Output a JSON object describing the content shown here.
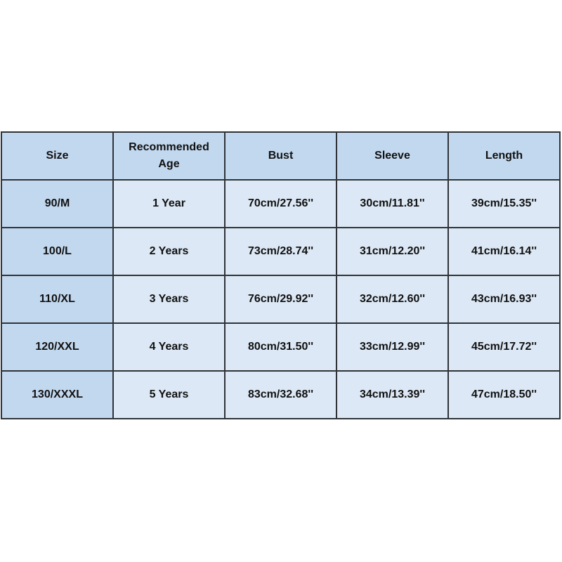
{
  "table": {
    "headers": [
      "Size",
      "Recommended Age",
      "Bust",
      "Sleeve",
      "Length"
    ],
    "rows": [
      [
        "90/M",
        "1 Year",
        "70cm/27.56''",
        "30cm/11.81''",
        "39cm/15.35''"
      ],
      [
        "100/L",
        "2 Years",
        "73cm/28.74''",
        "31cm/12.20''",
        "41cm/16.14''"
      ],
      [
        "110/XL",
        "3 Years",
        "76cm/29.92''",
        "32cm/12.60''",
        "43cm/16.93''"
      ],
      [
        "120/XXL",
        "4 Years",
        "80cm/31.50''",
        "33cm/12.99''",
        "45cm/17.72''"
      ],
      [
        "130/XXXL",
        "5 Years",
        "83cm/32.68''",
        "34cm/13.39''",
        "47cm/18.50''"
      ]
    ]
  },
  "colors": {
    "header_bg": "#c2d8ef",
    "cell_bg": "#dce8f5",
    "border": "#2f3338"
  }
}
